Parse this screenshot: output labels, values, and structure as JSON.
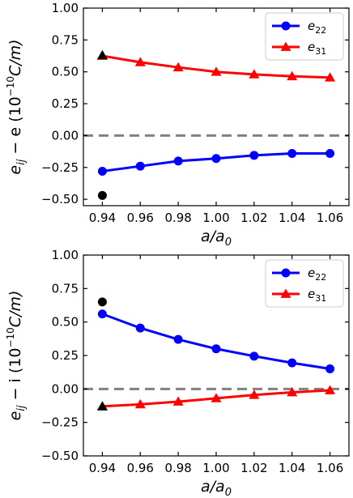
{
  "chart_data": [
    {
      "type": "line",
      "title": "",
      "xlabel_main": "a/a",
      "xlabel_sub": "0",
      "ylabel_main": "e",
      "ylabel_sub": "ij",
      "ylabel_rest": " − e (10",
      "ylabel_sup": "−10",
      "ylabel_end": "C/m)",
      "xlim": [
        0.93,
        1.07
      ],
      "ylim": [
        -0.55,
        1.0
      ],
      "x_ticks": [
        0.94,
        0.96,
        0.98,
        1.0,
        1.02,
        1.04,
        1.06
      ],
      "x_tick_labels": [
        "0.94",
        "0.96",
        "0.98",
        "1.00",
        "1.02",
        "1.04",
        "1.06"
      ],
      "y_ticks": [
        -0.5,
        -0.25,
        0.0,
        0.25,
        0.5,
        0.75,
        1.0
      ],
      "y_tick_labels": [
        "−0.50",
        "−0.25",
        "0.00",
        "0.25",
        "0.50",
        "0.75",
        "1.00"
      ],
      "reference_line_y": 0.0,
      "legend_position": "top-right",
      "x": [
        0.94,
        0.96,
        0.98,
        1.0,
        1.02,
        1.04,
        1.06
      ],
      "series": [
        {
          "name_main": "e",
          "name_sub": "22",
          "color": "#0000ff",
          "marker": "circle",
          "values": [
            -0.28,
            -0.24,
            -0.2,
            -0.18,
            -0.155,
            -0.14,
            -0.14
          ]
        },
        {
          "name_main": "e",
          "name_sub": "31",
          "color": "#ff0000",
          "marker": "triangle",
          "values": [
            0.625,
            0.575,
            0.535,
            0.5,
            0.48,
            0.465,
            0.455
          ]
        }
      ],
      "extra_points": [
        {
          "x": 0.94,
          "y": 0.63,
          "marker": "triangle",
          "color": "#000000"
        },
        {
          "x": 0.94,
          "y": -0.47,
          "marker": "circle",
          "color": "#000000"
        }
      ]
    },
    {
      "type": "line",
      "title": "",
      "xlabel_main": "a/a",
      "xlabel_sub": "0",
      "ylabel_main": "e",
      "ylabel_sub": "ij",
      "ylabel_rest": " − i (10",
      "ylabel_sup": "−10",
      "ylabel_end": "C/m)",
      "xlim": [
        0.93,
        1.07
      ],
      "ylim": [
        -0.5,
        1.0
      ],
      "x_ticks": [
        0.94,
        0.96,
        0.98,
        1.0,
        1.02,
        1.04,
        1.06
      ],
      "x_tick_labels": [
        "0.94",
        "0.96",
        "0.98",
        "1.00",
        "1.02",
        "1.04",
        "1.06"
      ],
      "y_ticks": [
        -0.5,
        -0.25,
        0.0,
        0.25,
        0.5,
        0.75,
        1.0
      ],
      "y_tick_labels": [
        "−0.50",
        "−0.25",
        "0.00",
        "0.25",
        "0.50",
        "0.75",
        "1.00"
      ],
      "reference_line_y": 0.0,
      "legend_position": "top-right",
      "x": [
        0.94,
        0.96,
        0.98,
        1.0,
        1.02,
        1.04,
        1.06
      ],
      "series": [
        {
          "name_main": "e",
          "name_sub": "22",
          "color": "#0000ff",
          "marker": "circle",
          "values": [
            0.56,
            0.455,
            0.37,
            0.3,
            0.245,
            0.195,
            0.15
          ]
        },
        {
          "name_main": "e",
          "name_sub": "31",
          "color": "#ff0000",
          "marker": "triangle",
          "values": [
            -0.13,
            -0.115,
            -0.095,
            -0.07,
            -0.045,
            -0.025,
            -0.01
          ]
        }
      ],
      "extra_points": [
        {
          "x": 0.94,
          "y": 0.65,
          "marker": "circle",
          "color": "#000000"
        },
        {
          "x": 0.94,
          "y": -0.13,
          "marker": "triangle",
          "color": "#000000"
        }
      ]
    }
  ]
}
